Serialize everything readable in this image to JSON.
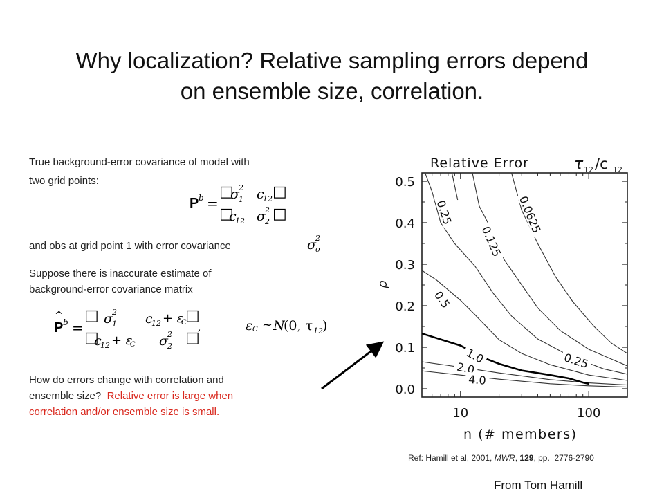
{
  "slide": {
    "title_line1": "Why localization? Relative sampling errors depend",
    "title_line2": "on ensemble size, correlation.",
    "para1_line1": "True background-error  covariance of model with",
    "para1_line2": "two grid points:",
    "eq1": {
      "lhs_bold": "P",
      "lhs_sup": "b",
      "sym": "=",
      "sigma": "σ",
      "sub1": "1",
      "sub2": "2",
      "sq": "2",
      "c": "c",
      "c_sub": "12",
      "box": "□"
    },
    "para2": "and obs at grid point 1 with error covariance",
    "obs_sym": "σ",
    "obs_sub": "o",
    "obs_sup": "2",
    "para3_line1": "Suppose there is inaccurate estimate of",
    "para3_line2": "background-error  covariance matrix",
    "eq2": {
      "lhs_bold": "P",
      "hat": "^",
      "lhs_sup": "b",
      "sym": "=",
      "plus_eps": "+ ε",
      "eps_sub": "C",
      "box": "□",
      "comma": ","
    },
    "eq3": {
      "eps": "ε",
      "eps_sub": "C",
      "tilde": "~",
      "N": "N",
      "args": "(0, τ",
      "tau_sub": "12",
      "close": ")"
    },
    "para4_line1": "How do errors change with correlation and",
    "para4_line2_black": "ensemble size?  ",
    "para4_line2_red": "Relative error is large when",
    "para4_line3_red": "correlation and/or ensemble size is small.",
    "ref_prefix": "Ref: Hamill et al, 2001, ",
    "ref_journal": "MWR",
    "ref_mid": ", ",
    "ref_volume": "129",
    "ref_suffix": ", pp.  2776-2790",
    "credit": "From Tom Hamill"
  },
  "chart_data": {
    "type": "contour",
    "title": "Relative Error",
    "title_math": "τ",
    "title_math_sub": "12",
    "title_slash": "/c",
    "title_slash_sub": "12",
    "xlabel": "n (# members)",
    "ylabel": "ρ",
    "xscale": "log",
    "xlim": [
      5,
      200
    ],
    "ylim": [
      -0.02,
      0.52
    ],
    "x_ticks": [
      10,
      100
    ],
    "x_tick_labels": [
      "10",
      "100"
    ],
    "y_ticks": [
      0.0,
      0.1,
      0.2,
      0.3,
      0.4,
      0.5
    ],
    "y_tick_labels": [
      "0.0",
      "0.1",
      "0.2",
      "0.3",
      "0.4",
      "0.5"
    ],
    "contours": [
      {
        "level": "4.0",
        "points": [
          [
            5,
            0.043
          ],
          [
            10,
            0.033
          ],
          [
            20,
            0.023
          ],
          [
            50,
            0.012
          ],
          [
            100,
            0.007
          ],
          [
            200,
            0.004
          ]
        ]
      },
      {
        "level": "2.0",
        "points": [
          [
            5,
            0.065
          ],
          [
            10,
            0.052
          ],
          [
            20,
            0.038
          ],
          [
            50,
            0.022
          ],
          [
            100,
            0.014
          ],
          [
            200,
            0.009
          ]
        ]
      },
      {
        "level": "1.0",
        "points": [
          [
            5,
            0.133
          ],
          [
            10,
            0.104
          ],
          [
            15,
            0.075
          ],
          [
            20,
            0.06
          ],
          [
            30,
            0.044
          ],
          [
            50,
            0.033
          ],
          [
            70,
            0.025
          ],
          [
            90,
            0.015
          ],
          [
            100,
            0.012
          ]
        ],
        "bold": true
      },
      {
        "level": "0.5",
        "points": [
          [
            5,
            0.285
          ],
          [
            6.5,
            0.262
          ],
          [
            10,
            0.213
          ],
          [
            13,
            0.178
          ],
          [
            20,
            0.118
          ],
          [
            30,
            0.085
          ],
          [
            50,
            0.058
          ],
          [
            100,
            0.033
          ],
          [
            200,
            0.02
          ]
        ]
      },
      {
        "level": "0.25",
        "points": [
          [
            5,
            0.54
          ],
          [
            6,
            0.475
          ],
          [
            7,
            0.4
          ],
          [
            9,
            0.35
          ],
          [
            13,
            0.295
          ],
          [
            18,
            0.23
          ],
          [
            25,
            0.175
          ],
          [
            40,
            0.12
          ],
          [
            70,
            0.08
          ],
          [
            130,
            0.048
          ],
          [
            200,
            0.035
          ]
        ]
      },
      {
        "level": "0.25",
        "points": [
          [
            8.3,
            0.54
          ],
          [
            9.5,
            0.455
          ]
        ],
        "unlabeled": true
      },
      {
        "level": "0.125",
        "points": [
          [
            12,
            0.54
          ],
          [
            14,
            0.44
          ],
          [
            17,
            0.39
          ],
          [
            22,
            0.31
          ],
          [
            30,
            0.25
          ],
          [
            40,
            0.195
          ],
          [
            60,
            0.14
          ],
          [
            100,
            0.095
          ],
          [
            200,
            0.055
          ]
        ]
      },
      {
        "level": "0.0625",
        "points": [
          [
            24,
            0.54
          ],
          [
            30,
            0.43
          ],
          [
            40,
            0.35
          ],
          [
            55,
            0.27
          ],
          [
            75,
            0.21
          ],
          [
            110,
            0.15
          ],
          [
            150,
            0.11
          ],
          [
            200,
            0.085
          ]
        ]
      }
    ],
    "contour_labels": [
      {
        "text": "0.25",
        "x": 7.5,
        "y": 0.425,
        "angle": 72
      },
      {
        "text": "0.125",
        "x": 17.5,
        "y": 0.355,
        "angle": 67
      },
      {
        "text": "0.0625",
        "x": 35,
        "y": 0.42,
        "angle": 68
      },
      {
        "text": "0.5",
        "x": 7.2,
        "y": 0.215,
        "angle": 55
      },
      {
        "text": "0.25",
        "x": 80,
        "y": 0.068,
        "angle": 18
      },
      {
        "text": "1.0",
        "x": 13,
        "y": 0.08,
        "angle": 28
      },
      {
        "text": "2.0",
        "x": 11,
        "y": 0.05,
        "angle": 12
      },
      {
        "text": "4.0",
        "x": 13.5,
        "y": 0.022,
        "angle": 4
      }
    ]
  }
}
